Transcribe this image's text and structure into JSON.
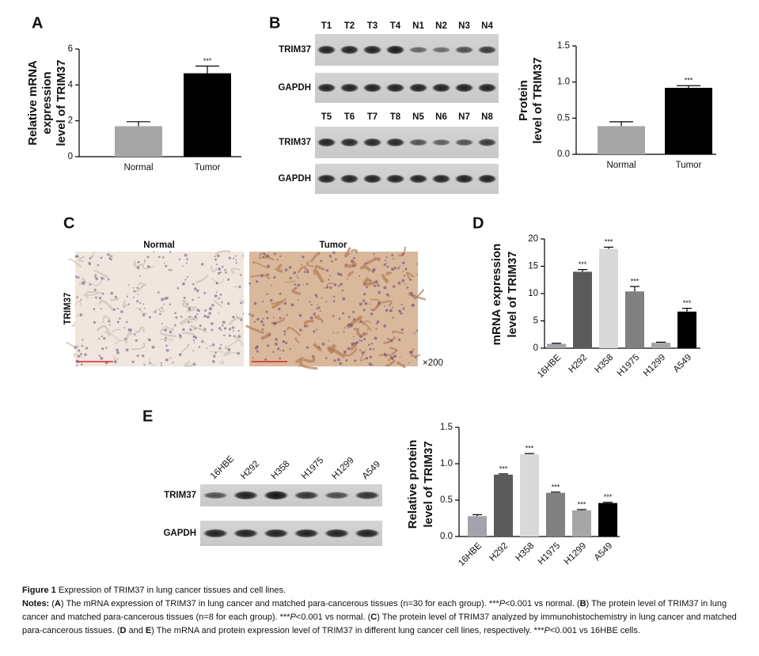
{
  "panels": [
    "A",
    "B",
    "C",
    "D",
    "E"
  ],
  "chart_data": [
    {
      "type": "bar",
      "y_label": [
        "Relative mRNA",
        "expression",
        "level of TRIM37"
      ],
      "categories": [
        "Normal",
        "Tumor"
      ],
      "values": [
        1.7,
        4.65
      ],
      "errors": [
        0.25,
        0.4
      ],
      "significance": [
        null,
        "***"
      ],
      "colors": [
        "#a6a6a6",
        "#000000"
      ],
      "ylim": [
        0,
        6
      ],
      "yticks": [
        0,
        2,
        4,
        6
      ]
    },
    {
      "type": "bar",
      "y_label": [
        "Protein",
        "level of TRIM37"
      ],
      "categories": [
        "Normal",
        "Tumor"
      ],
      "values": [
        0.39,
        0.92
      ],
      "errors": [
        0.06,
        0.03
      ],
      "significance": [
        null,
        "***"
      ],
      "colors": [
        "#a6a6a6",
        "#000000"
      ],
      "ylim": [
        0,
        1.5
      ],
      "yticks": [
        {
          "value": 0,
          "label": "0.0"
        },
        0.5,
        {
          "value": 1,
          "label": "1.0"
        },
        1.5
      ]
    },
    {
      "type": "bar",
      "y_label": [
        "mRNA expression",
        "level of TRIM37"
      ],
      "categories": [
        "16HBE",
        "H292",
        "H358",
        "H1975",
        "H1299",
        "A549"
      ],
      "values": [
        0.8,
        14,
        18.2,
        10.4,
        1.0,
        6.7
      ],
      "errors": [
        0.1,
        0.4,
        0.3,
        0.9,
        0.1,
        0.6
      ],
      "significance": [
        null,
        "***",
        "***",
        "***",
        null,
        "***"
      ],
      "colors": [
        "#a3a3ab",
        "#5a5a5a",
        "#d9d9d9",
        "#808080",
        "#a6a6a6",
        "#000000"
      ],
      "ylim": [
        0,
        20
      ],
      "yticks": [
        0,
        5,
        10,
        15,
        20
      ]
    },
    {
      "type": "bar",
      "y_label": [
        "Relative protein",
        "level of TRIM37"
      ],
      "categories": [
        "16HBE",
        "H292",
        "H358",
        "H1975",
        "H1299",
        "A549"
      ],
      "values": [
        0.28,
        0.85,
        1.13,
        0.6,
        0.36,
        0.46
      ],
      "errors": [
        0.02,
        0.01,
        0.01,
        0.01,
        0.01,
        0.01
      ],
      "significance": [
        null,
        "***",
        "***",
        "***",
        "***",
        "***"
      ],
      "colors": [
        "#a3a3ab",
        "#5a5a5a",
        "#d9d9d9",
        "#808080",
        "#a6a6a6",
        "#000000"
      ],
      "ylim": [
        0,
        1.5
      ],
      "yticks": [
        {
          "value": 0,
          "label": "0.0"
        },
        0.5,
        {
          "value": 1,
          "label": "1.0"
        },
        1.5
      ]
    }
  ],
  "blot_b": {
    "lanes": [
      [
        "T1",
        "T2",
        "T3",
        "T4",
        "N1",
        "N2",
        "N3",
        "N4"
      ],
      [
        "T5",
        "T6",
        "T7",
        "T8",
        "N5",
        "N6",
        "N7",
        "N8"
      ]
    ],
    "rows": [
      [
        "TRIM37",
        "GAPDH"
      ],
      [
        "TRIM37",
        "GAPDH"
      ]
    ]
  },
  "ihc": {
    "columns": [
      "Normal",
      "Tumor"
    ],
    "row": "TRIM37",
    "magnification": "×200"
  },
  "blot_e": {
    "lanes": [
      "16HBE",
      "H292",
      "H358",
      "H1975",
      "H1299",
      "A549"
    ],
    "rows": [
      "TRIM37",
      "GAPDH"
    ]
  },
  "caption": {
    "label": "Figure 1",
    "title": "Expression of TRIM37 in lung cancer tissues and cell lines.",
    "notes": [
      {
        "text": "Notes:",
        "bold": true
      },
      {
        "text": " ("
      },
      {
        "text": "A",
        "bold": true
      },
      {
        "text": ") The mRNA expression of TRIM37 in lung cancer and matched para-cancerous tissues (n=30 for each group). ***"
      },
      {
        "text": "P",
        "italic": true
      },
      {
        "text": "<0.001 vs normal. ("
      },
      {
        "text": "B",
        "bold": true
      },
      {
        "text": ") The protein level of TRIM37 in lung cancer and matched para-cancerous tissues (n=8 for each group). ***"
      },
      {
        "text": "P",
        "italic": true
      },
      {
        "text": "<0.001 vs normal. ("
      },
      {
        "text": "C",
        "bold": true
      },
      {
        "text": ") The protein level of TRIM37 analyzed by immunohistochemistry in lung cancer and matched para-cancerous tissues. ("
      },
      {
        "text": "D",
        "bold": true
      },
      {
        "text": " and "
      },
      {
        "text": "E",
        "bold": true
      },
      {
        "text": ") The mRNA and protein expression level of TRIM37 in different lung cancer cell lines, respectively. ***"
      },
      {
        "text": "P",
        "italic": true
      },
      {
        "text": "<0.001 vs 16HBE cells."
      }
    ]
  }
}
